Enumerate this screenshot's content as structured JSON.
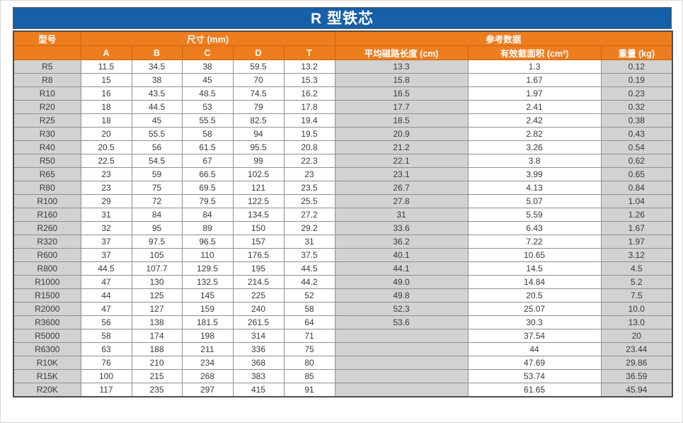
{
  "title": "R 型铁芯",
  "colors": {
    "title_bg": "#175fa6",
    "header_bg": "#ee7d1e",
    "gray_cell": "#d2d2d2",
    "header_text": "#ffffff",
    "body_text": "#3a3a3a"
  },
  "chart_data": {
    "type": "table",
    "title": "R 型铁芯",
    "group_headers": [
      "型号",
      "尺寸 (mm)",
      "参考数据"
    ],
    "columns": [
      "",
      "A",
      "B",
      "C",
      "D",
      "T",
      "平均磁路长度 (cm)",
      "有效截面积 (cm²)",
      "重量 (kg)"
    ],
    "rows": [
      [
        "R5",
        "11.5",
        "34.5",
        "38",
        "59.5",
        "13.2",
        "13.3",
        "1.3",
        "0.12"
      ],
      [
        "R8",
        "15",
        "38",
        "45",
        "70",
        "15.3",
        "15.8",
        "1.67",
        "0.19"
      ],
      [
        "R10",
        "16",
        "43.5",
        "48.5",
        "74.5",
        "16.2",
        "16.5",
        "1.97",
        "0.23"
      ],
      [
        "R20",
        "18",
        "44.5",
        "53",
        "79",
        "17.8",
        "17.7",
        "2.41",
        "0.32"
      ],
      [
        "R25",
        "18",
        "45",
        "55.5",
        "82.5",
        "19.4",
        "18.5",
        "2.42",
        "0.38"
      ],
      [
        "R30",
        "20",
        "55.5",
        "58",
        "94",
        "19.5",
        "20.9",
        "2.82",
        "0.43"
      ],
      [
        "R40",
        "20.5",
        "56",
        "61.5",
        "95.5",
        "20.8",
        "21.2",
        "3.26",
        "0.54"
      ],
      [
        "R50",
        "22.5",
        "54.5",
        "67",
        "99",
        "22.3",
        "22.1",
        "3.8",
        "0.62"
      ],
      [
        "R65",
        "23",
        "59",
        "66.5",
        "102.5",
        "23",
        "23.1",
        "3.99",
        "0.65"
      ],
      [
        "R80",
        "23",
        "75",
        "69.5",
        "121",
        "23.5",
        "26.7",
        "4.13",
        "0.84"
      ],
      [
        "R100",
        "29",
        "72",
        "79.5",
        "122.5",
        "25.5",
        "27.8",
        "5.07",
        "1.04"
      ],
      [
        "R160",
        "31",
        "84",
        "84",
        "134.5",
        "27.2",
        "31",
        "5.59",
        "1.26"
      ],
      [
        "R260",
        "32",
        "95",
        "89",
        "150",
        "29.2",
        "33.6",
        "6.43",
        "1.67"
      ],
      [
        "R320",
        "37",
        "97.5",
        "96.5",
        "157",
        "31",
        "36.2",
        "7.22",
        "1.97"
      ],
      [
        "R600",
        "37",
        "105",
        "110",
        "176.5",
        "37.5",
        "40.1",
        "10.65",
        "3.12"
      ],
      [
        "R800",
        "44.5",
        "107.7",
        "129.5",
        "195",
        "44.5",
        "44.1",
        "14.5",
        "4.5"
      ],
      [
        "R1000",
        "47",
        "130",
        "132.5",
        "214.5",
        "44.2",
        "49.0",
        "14.84",
        "5.2"
      ],
      [
        "R1500",
        "44",
        "125",
        "145",
        "225",
        "52",
        "49.8",
        "20.5",
        "7.5"
      ],
      [
        "R2000",
        "47",
        "127",
        "159",
        "240",
        "58",
        "52.3",
        "25.07",
        "10.0"
      ],
      [
        "R3600",
        "56",
        "138",
        "181.5",
        "261.5",
        "64",
        "53.6",
        "30.3",
        "13.0"
      ],
      [
        "R5000",
        "58",
        "174",
        "198",
        "314",
        "71",
        "",
        "37.54",
        "20"
      ],
      [
        "R6300",
        "63",
        "188",
        "211",
        "336",
        "75",
        "",
        "44",
        "23.44"
      ],
      [
        "R10K",
        "76",
        "210",
        "234",
        "368",
        "80",
        "",
        "47.69",
        "29.86"
      ],
      [
        "R15K",
        "100",
        "215",
        "268",
        "383",
        "85",
        "",
        "53.74",
        "36.59"
      ],
      [
        "R20K",
        "117",
        "235",
        "297",
        "415",
        "91",
        "",
        "61.65",
        "45.94"
      ]
    ]
  }
}
